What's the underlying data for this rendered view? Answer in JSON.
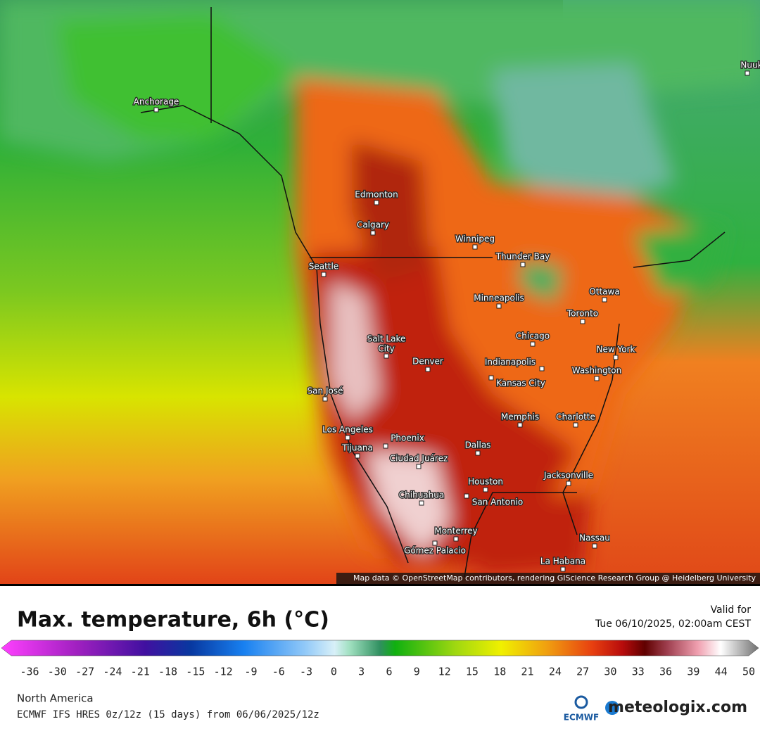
{
  "map": {
    "cities": [
      "Anchorage",
      "Edmonton",
      "Calgary",
      "Winnipeg",
      "Thunder Bay",
      "Seattle",
      "Ottawa",
      "Minneapolis",
      "Toronto",
      "Chicago",
      "Salt Lake",
      "City",
      "New York",
      "Denver",
      "Indianapolis",
      "Washington",
      "Kansas City",
      "San José",
      "Memphis",
      "Charlotte",
      "Los Angeles",
      "Phoenix",
      "Tijuana",
      "Dallas",
      "Ciudad Juárez",
      "Houston",
      "Jacksonville",
      "Chihuahua",
      "San Antonio",
      "Monterrey",
      "Nassau",
      "Gómez Palacio",
      "La Habana",
      "Nuuk"
    ],
    "attribution": "Map data © OpenStreetMap contributors, rendering GIScience Research Group @ Heidelberg University"
  },
  "legend": {
    "title": "Max. temperature, 6h (°C)",
    "valid_label": "Valid for",
    "valid_time": "Tue 06/10/2025, 02:00am CEST",
    "ticks": [
      -36,
      -30,
      -27,
      -24,
      -21,
      -18,
      -15,
      -12,
      -9,
      -6,
      -3,
      0,
      3,
      6,
      9,
      12,
      15,
      18,
      21,
      24,
      27,
      30,
      33,
      36,
      39,
      44,
      50
    ]
  },
  "footer": {
    "region": "North America",
    "model": "ECMWF IFS HRES 0z/12z (15 days) from  06/06/2025/12z",
    "ecmwf": "ECMWF",
    "brand": "meteologix.com"
  }
}
